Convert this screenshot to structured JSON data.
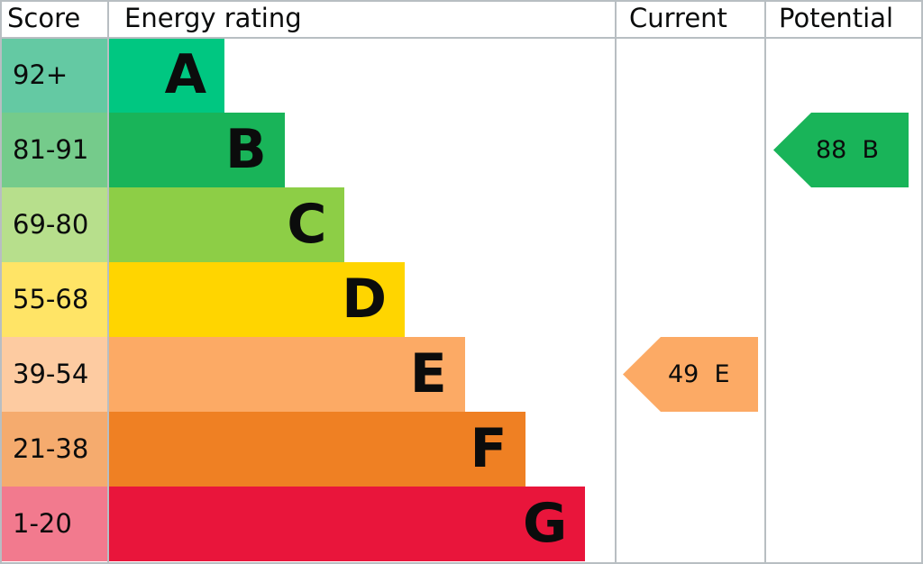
{
  "chart_data": {
    "type": "bar",
    "headers": {
      "score": "Score",
      "rating": "Energy rating",
      "current": "Current",
      "potential": "Potential"
    },
    "bands": [
      {
        "letter": "A",
        "range": "92+",
        "color": "#00c781",
        "score_color": "#64c9a3"
      },
      {
        "letter": "B",
        "range": "81-91",
        "color": "#19b459",
        "score_color": "#75cb8b"
      },
      {
        "letter": "C",
        "range": "69-80",
        "color": "#8dce46",
        "score_color": "#b7df8c"
      },
      {
        "letter": "D",
        "range": "55-68",
        "color": "#ffd500",
        "score_color": "#ffe466"
      },
      {
        "letter": "E",
        "range": "39-54",
        "color": "#fcaa65",
        "score_color": "#fdcba1"
      },
      {
        "letter": "F",
        "range": "21-38",
        "color": "#ef8023",
        "score_color": "#f5ab6e"
      },
      {
        "letter": "G",
        "range": "1-20",
        "color": "#e9153b",
        "score_color": "#f27a8e"
      }
    ],
    "current": {
      "value": 49,
      "letter": "E",
      "label": "49  E",
      "color": "#fcaa65"
    },
    "potential": {
      "value": 88,
      "letter": "B",
      "label": "88  B",
      "color": "#19b459"
    }
  }
}
